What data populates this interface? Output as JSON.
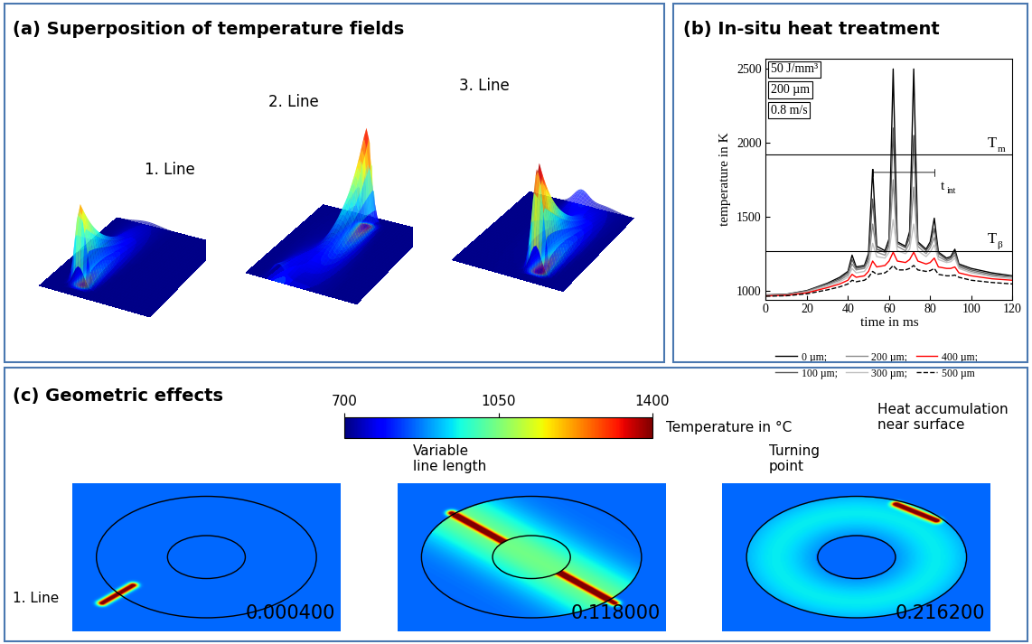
{
  "panel_a": {
    "title": "(a) Superposition of temperature fields",
    "lines": [
      "1. Line",
      "2. Line",
      "3. Line"
    ]
  },
  "chart_data": {
    "type": "line",
    "title": "(b) In-situ heat treatment",
    "xlabel": "time in ms",
    "ylabel": "temperature in K",
    "xlim": [
      0,
      120
    ],
    "xticks": [
      0,
      20,
      40,
      60,
      80,
      100,
      120
    ],
    "ylim": [
      940,
      2570
    ],
    "yticks": [
      1000,
      1500,
      2000,
      2500
    ],
    "grid": false,
    "legend": "upper center",
    "parameters": [
      "50 J/mm³",
      "200 µm",
      "0.8 m/s"
    ],
    "reference_lines": [
      {
        "label": "T",
        "sub": "m",
        "value": 1920
      },
      {
        "label": "T",
        "sub": "β",
        "value": 1270
      }
    ],
    "interval": {
      "label": "t",
      "sub": "int",
      "x": [
        52,
        82
      ],
      "y": 1800
    },
    "x": [
      0,
      10,
      20,
      30,
      36,
      40,
      42,
      44,
      48,
      50,
      52,
      54,
      58,
      60,
      62,
      64,
      68,
      70,
      72,
      74,
      78,
      80,
      82,
      84,
      88,
      90,
      92,
      94,
      100,
      110,
      120
    ],
    "series": [
      {
        "name": "0 µm;",
        "color": "#000000",
        "line_style": "solid",
        "values": [
          970,
          975,
          1000,
          1050,
          1090,
          1130,
          1240,
          1160,
          1170,
          1250,
          1820,
          1300,
          1270,
          1350,
          2500,
          1330,
          1300,
          1400,
          2500,
          1330,
          1280,
          1330,
          1490,
          1260,
          1220,
          1230,
          1280,
          1180,
          1150,
          1120,
          1100
        ]
      },
      {
        "name": "100 µm;",
        "color": "#555555",
        "line_style": "solid",
        "values": [
          970,
          974,
          998,
          1045,
          1080,
          1120,
          1210,
          1150,
          1160,
          1220,
          1620,
          1280,
          1260,
          1320,
          2100,
          1320,
          1290,
          1360,
          2050,
          1320,
          1270,
          1310,
          1420,
          1250,
          1210,
          1220,
          1260,
          1170,
          1140,
          1110,
          1095
        ]
      },
      {
        "name": "200 µm;",
        "color": "#8c8c8c",
        "line_style": "solid",
        "values": [
          968,
          972,
          995,
          1040,
          1070,
          1105,
          1180,
          1140,
          1150,
          1200,
          1450,
          1260,
          1240,
          1300,
          1750,
          1300,
          1270,
          1320,
          1700,
          1300,
          1250,
          1290,
          1360,
          1230,
          1200,
          1210,
          1240,
          1160,
          1130,
          1100,
          1090
        ]
      },
      {
        "name": "300 µm;",
        "color": "#c0c0c0",
        "line_style": "solid",
        "values": [
          966,
          970,
          990,
          1030,
          1060,
          1090,
          1150,
          1120,
          1130,
          1170,
          1320,
          1230,
          1220,
          1260,
          1480,
          1270,
          1250,
          1280,
          1450,
          1270,
          1230,
          1260,
          1310,
          1210,
          1190,
          1195,
          1220,
          1150,
          1120,
          1095,
          1080
        ]
      },
      {
        "name": "400 µm;",
        "color": "#ff0000",
        "line_style": "solid",
        "values": [
          964,
          968,
          985,
          1020,
          1045,
          1070,
          1110,
          1090,
          1100,
          1130,
          1200,
          1160,
          1170,
          1200,
          1260,
          1200,
          1190,
          1210,
          1260,
          1200,
          1180,
          1190,
          1220,
          1160,
          1150,
          1150,
          1160,
          1120,
          1100,
          1080,
          1070
        ]
      },
      {
        "name": "500 µm",
        "color": "#000000",
        "line_style": "dashed",
        "values": [
          962,
          965,
          978,
          1005,
          1025,
          1045,
          1070,
          1060,
          1070,
          1090,
          1130,
          1110,
          1120,
          1140,
          1170,
          1140,
          1140,
          1150,
          1170,
          1140,
          1130,
          1135,
          1150,
          1110,
          1100,
          1100,
          1105,
          1090,
          1070,
          1055,
          1045
        ]
      }
    ]
  },
  "panel_c": {
    "title": "(c) Geometric effects",
    "colorbar": {
      "label": "Temperature in °C",
      "range": [
        700,
        1400
      ],
      "ticks": [
        700,
        1050,
        1400
      ]
    },
    "annotations": [
      [
        "Variable",
        "line length"
      ],
      [
        "Turning",
        "point"
      ],
      [
        "Heat accumulation",
        "near surface"
      ]
    ],
    "line_label": "1. Line",
    "timestamps": [
      "0.000400",
      "0.118000",
      "0.216200"
    ]
  }
}
